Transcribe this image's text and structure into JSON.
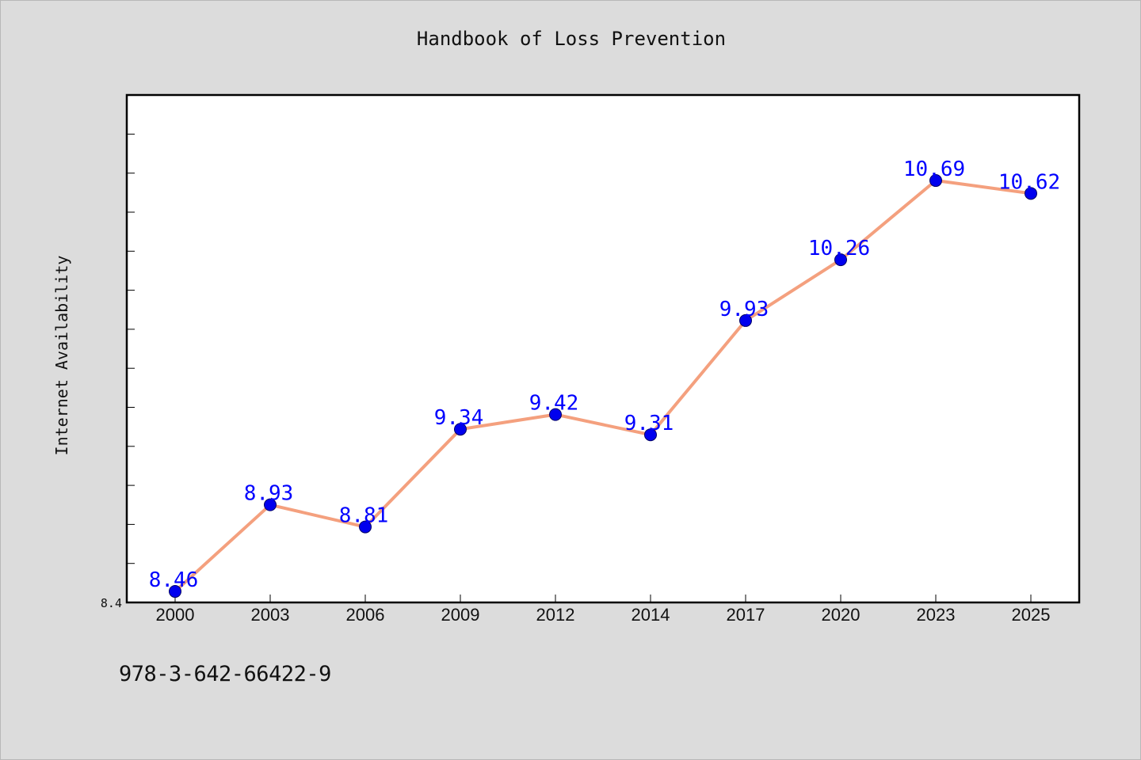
{
  "chart_data": {
    "type": "line",
    "title": "Handbook of Loss Prevention",
    "xlabel": "",
    "ylabel": "Internet Availability",
    "categories": [
      "2000",
      "2003",
      "2006",
      "2009",
      "2012",
      "2014",
      "2017",
      "2020",
      "2023",
      "2025"
    ],
    "values": [
      8.46,
      8.93,
      8.81,
      9.34,
      9.42,
      9.31,
      9.93,
      10.26,
      10.69,
      10.62
    ],
    "data_labels": [
      "8.46",
      "8.93",
      "8.81",
      "9.34",
      "9.42",
      "9.31",
      "9.93",
      "10.26",
      "10.69",
      "10.62"
    ],
    "y_tick_label": "8.4",
    "ylim": [
      8.4,
      11.0
    ],
    "grid": false,
    "line_color": "#f4a07e",
    "marker_color": "#0000ee",
    "label_color": "#0000ff"
  },
  "footer": {
    "isbn": "978-3-642-66422-9"
  }
}
